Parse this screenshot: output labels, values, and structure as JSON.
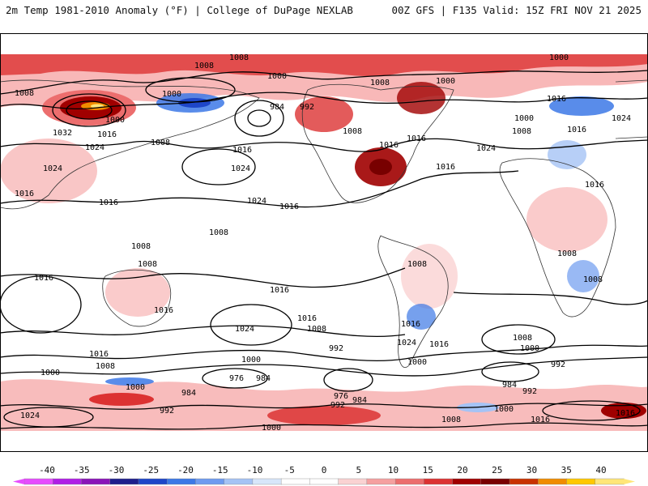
{
  "header": {
    "left": "2m Temp 1981-2010 Anomaly (°F) | College of DuPage NEXLAB",
    "right": "00Z GFS | F135 Valid: 15Z FRI NOV 21 2025"
  },
  "colorbar": {
    "ticks": [
      "-40",
      "-35",
      "-30",
      "-25",
      "-20",
      "-15",
      "-10",
      "-5",
      "0",
      "5",
      "10",
      "15",
      "20",
      "25",
      "30",
      "35",
      "40"
    ],
    "colors": [
      "#e64cff",
      "#b01ee6",
      "#8a14b8",
      "#1e1e8c",
      "#1e46c8",
      "#3c78e6",
      "#6e9bf0",
      "#a5c3f5",
      "#d7e6fa",
      "#ffffff",
      "#ffffff",
      "#fad2d2",
      "#f5a0a0",
      "#ec6e6e",
      "#dc3232",
      "#a00000",
      "#780000",
      "#c83200",
      "#f08c00",
      "#ffc800",
      "#ffe678"
    ]
  },
  "contour_labels": [
    {
      "id": "l1",
      "text": "1008"
    },
    {
      "id": "l2",
      "text": "1000"
    },
    {
      "id": "l3",
      "text": "1008"
    },
    {
      "id": "l4",
      "text": "1008"
    },
    {
      "id": "l5",
      "text": "1000"
    },
    {
      "id": "l6",
      "text": "1000"
    },
    {
      "id": "l7",
      "text": "984"
    },
    {
      "id": "l8",
      "text": "992"
    },
    {
      "id": "l9",
      "text": "1008"
    },
    {
      "id": "l10",
      "text": "1000"
    },
    {
      "id": "l11",
      "text": "1000"
    },
    {
      "id": "l12",
      "text": "1016"
    },
    {
      "id": "l13",
      "text": "1000"
    },
    {
      "id": "l14",
      "text": "1008"
    },
    {
      "id": "l15",
      "text": "1024"
    },
    {
      "id": "l16",
      "text": "1032"
    },
    {
      "id": "l17",
      "text": "1016"
    },
    {
      "id": "l18",
      "text": "1024"
    },
    {
      "id": "l19",
      "text": "1008"
    },
    {
      "id": "l20",
      "text": "1016"
    },
    {
      "id": "l21",
      "text": "1008"
    },
    {
      "id": "l22",
      "text": "1016"
    },
    {
      "id": "l23",
      "text": "1016"
    },
    {
      "id": "l24",
      "text": "1024"
    },
    {
      "id": "l25",
      "text": "1024"
    },
    {
      "id": "l26",
      "text": "1024"
    },
    {
      "id": "l27",
      "text": "1016"
    },
    {
      "id": "l28",
      "text": "1016"
    },
    {
      "id": "l29",
      "text": "1016"
    },
    {
      "id": "l30",
      "text": "1016"
    },
    {
      "id": "l31",
      "text": "1016"
    },
    {
      "id": "l32",
      "text": "1008"
    },
    {
      "id": "l33",
      "text": "1008"
    },
    {
      "id": "l34",
      "text": "1008"
    },
    {
      "id": "l35",
      "text": "1016"
    },
    {
      "id": "l36",
      "text": "1008"
    },
    {
      "id": "l37",
      "text": "1016"
    },
    {
      "id": "l38",
      "text": "1008"
    },
    {
      "id": "l39",
      "text": "1016"
    },
    {
      "id": "l40",
      "text": "1016"
    },
    {
      "id": "l41",
      "text": "1016"
    },
    {
      "id": "l42",
      "text": "1016"
    },
    {
      "id": "l43",
      "text": "1008"
    },
    {
      "id": "l44",
      "text": "1024"
    },
    {
      "id": "l45",
      "text": "1024"
    },
    {
      "id": "l46",
      "text": "1016"
    },
    {
      "id": "l47",
      "text": "1000"
    },
    {
      "id": "l48",
      "text": "1008"
    },
    {
      "id": "l49",
      "text": "992"
    },
    {
      "id": "l50",
      "text": "1008"
    },
    {
      "id": "l51",
      "text": "1000"
    },
    {
      "id": "l52",
      "text": "992"
    },
    {
      "id": "l53",
      "text": "976"
    },
    {
      "id": "l54",
      "text": "984"
    },
    {
      "id": "l55",
      "text": "1000"
    },
    {
      "id": "l56",
      "text": "984"
    },
    {
      "id": "l57",
      "text": "992"
    },
    {
      "id": "l58",
      "text": "1024"
    },
    {
      "id": "l59",
      "text": "976"
    },
    {
      "id": "l60",
      "text": "984"
    },
    {
      "id": "l61",
      "text": "992"
    },
    {
      "id": "l62",
      "text": "984"
    },
    {
      "id": "l63",
      "text": "992"
    },
    {
      "id": "l64",
      "text": "1000"
    },
    {
      "id": "l65",
      "text": "1008"
    },
    {
      "id": "l66",
      "text": "1000"
    },
    {
      "id": "l67",
      "text": "1016"
    },
    {
      "id": "l68",
      "text": "1008"
    },
    {
      "id": "l69",
      "text": "1000"
    },
    {
      "id": "l70",
      "text": "1016"
    },
    {
      "id": "l71",
      "text": "1000"
    },
    {
      "id": "l72",
      "text": "1024"
    },
    {
      "id": "l73",
      "text": "1016"
    }
  ]
}
